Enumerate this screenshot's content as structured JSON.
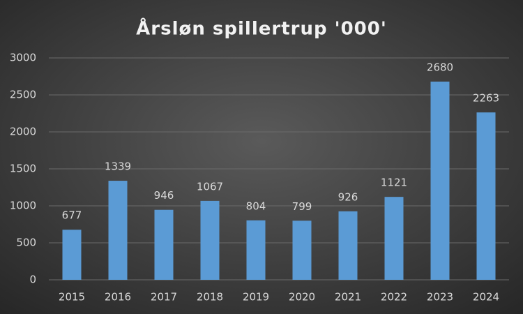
{
  "chart_data": {
    "type": "bar",
    "title": "Årsløn spillertrup '000'",
    "categories": [
      "2015",
      "2016",
      "2017",
      "2018",
      "2019",
      "2020",
      "2021",
      "2022",
      "2023",
      "2024"
    ],
    "values": [
      677,
      1339,
      946,
      1067,
      804,
      799,
      926,
      1121,
      2680,
      2263
    ],
    "color": "#5b9bd5",
    "ylim": [
      0,
      3000
    ],
    "yticks": [
      0,
      500,
      1000,
      1500,
      2000,
      2500,
      3000
    ],
    "grid": true
  }
}
